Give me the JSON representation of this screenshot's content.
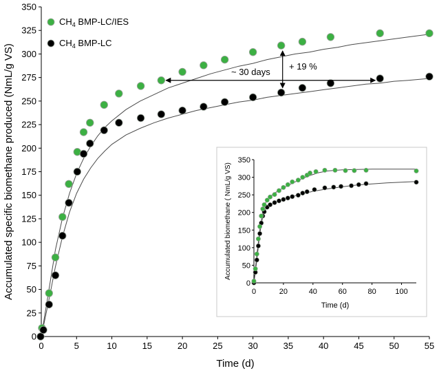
{
  "chart_data": [
    {
      "type": "scatter",
      "xlabel": "Time (d)",
      "ylabel": "Accumulated specific biomethane produced (NmL/g VS)",
      "xlim": [
        0,
        55
      ],
      "ylim": [
        0,
        350
      ],
      "xticks": [
        0,
        5,
        10,
        15,
        20,
        25,
        30,
        35,
        40,
        45,
        50,
        55
      ],
      "yticks": [
        0,
        25,
        50,
        75,
        100,
        125,
        150,
        175,
        200,
        225,
        250,
        275,
        300,
        325,
        350
      ],
      "legend": {
        "position": "top-left",
        "entries": [
          {
            "series": "bmp_lc_ies",
            "prefix": "CH",
            "sub": "4",
            "suffix": " BMP-LC/IES"
          },
          {
            "series": "bmp_lc",
            "prefix": "CH",
            "sub": "4",
            "suffix": " BMP-LC"
          }
        ]
      },
      "series": [
        {
          "id": "bmp_lc_ies",
          "name": "CH4 BMP-LC/IES",
          "color": "#3cb043",
          "points": [
            [
              0.1,
              9
            ],
            [
              1.1,
              46
            ],
            [
              2,
              84
            ],
            [
              3,
              127
            ],
            [
              3.9,
              162
            ],
            [
              5.1,
              196
            ],
            [
              6,
              217
            ],
            [
              6.9,
              227
            ],
            [
              8.9,
              246
            ],
            [
              11,
              258
            ],
            [
              14.1,
              266
            ],
            [
              17,
              272
            ],
            [
              20,
              281
            ],
            [
              23,
              288
            ],
            [
              26,
              294
            ],
            [
              30,
              302
            ],
            [
              34,
              309
            ],
            [
              37,
              313
            ],
            [
              41,
              318
            ],
            [
              48,
              322
            ],
            [
              55,
              322
            ]
          ],
          "fit": [
            [
              0,
              0
            ],
            [
              1,
              46
            ],
            [
              2,
              92
            ],
            [
              3,
              126
            ],
            [
              4,
              152
            ],
            [
              5,
              173
            ],
            [
              6,
              189
            ],
            [
              7,
              202
            ],
            [
              8,
              213
            ],
            [
              9,
              222
            ],
            [
              10,
              229
            ],
            [
              12,
              241
            ],
            [
              14,
              250
            ],
            [
              16,
              257
            ],
            [
              18,
              264
            ],
            [
              20,
              269
            ],
            [
              22,
              274
            ],
            [
              24,
              279
            ],
            [
              26,
              283
            ],
            [
              28,
              287
            ],
            [
              30,
              290
            ],
            [
              32,
              294
            ],
            [
              34,
              297
            ],
            [
              36,
              300
            ],
            [
              38,
              302
            ],
            [
              40,
              305
            ],
            [
              42,
              307
            ],
            [
              44,
              310
            ],
            [
              46,
              312
            ],
            [
              48,
              314
            ],
            [
              50,
              316
            ],
            [
              52,
              318
            ],
            [
              55,
              321
            ]
          ]
        },
        {
          "id": "bmp_lc",
          "name": "CH4 BMP-LC",
          "color": "#000000",
          "points": [
            [
              -0.1,
              0
            ],
            [
              0.3,
              7
            ],
            [
              1.1,
              34
            ],
            [
              2,
              65
            ],
            [
              3,
              107
            ],
            [
              3.9,
              142
            ],
            [
              5.1,
              175
            ],
            [
              6,
              194
            ],
            [
              6.9,
              205
            ],
            [
              8.9,
              219
            ],
            [
              11,
              227
            ],
            [
              14.1,
              232
            ],
            [
              17,
              236
            ],
            [
              20,
              240
            ],
            [
              23,
              244
            ],
            [
              26,
              249
            ],
            [
              30,
              254
            ],
            [
              34,
              259
            ],
            [
              37,
              264
            ],
            [
              41,
              269
            ],
            [
              48,
              274
            ],
            [
              55,
              276
            ]
          ],
          "fit": [
            [
              0,
              0
            ],
            [
              1,
              36
            ],
            [
              2,
              74
            ],
            [
              3,
              106
            ],
            [
              4,
              132
            ],
            [
              5,
              152
            ],
            [
              6,
              167
            ],
            [
              7,
              179
            ],
            [
              8,
              189
            ],
            [
              9,
              197
            ],
            [
              10,
              204
            ],
            [
              12,
              214
            ],
            [
              14,
              221
            ],
            [
              16,
              227
            ],
            [
              18,
              232
            ],
            [
              20,
              236
            ],
            [
              22,
              240
            ],
            [
              24,
              243
            ],
            [
              26,
              246
            ],
            [
              28,
              249
            ],
            [
              30,
              251
            ],
            [
              32,
              254
            ],
            [
              34,
              256
            ],
            [
              36,
              258
            ],
            [
              38,
              260
            ],
            [
              40,
              262
            ],
            [
              42,
              264
            ],
            [
              44,
              266
            ],
            [
              46,
              268
            ],
            [
              48,
              269
            ],
            [
              50,
              271
            ],
            [
              52,
              272
            ],
            [
              55,
              274
            ]
          ]
        }
      ],
      "annotations": [
        {
          "id": "days_arrow",
          "text": "~ 30 days",
          "from": [
            17,
            272
          ],
          "to": [
            48,
            274
          ]
        },
        {
          "id": "percent_arrow",
          "text": "+ 19 %",
          "from": [
            34.2,
            309
          ],
          "to": [
            34.2,
            259
          ]
        }
      ]
    },
    {
      "type": "scatter",
      "inset": true,
      "xlabel": "Time (d)",
      "ylabel": "Accumulated biomethane ( NmL/g VS)",
      "xlim": [
        0,
        110
      ],
      "ylim": [
        0,
        350
      ],
      "xticks": [
        0,
        20,
        40,
        60,
        80,
        100
      ],
      "yticks": [
        0,
        50,
        100,
        150,
        200,
        250,
        300,
        350
      ],
      "series": [
        {
          "id": "bmp_lc_ies",
          "name": "CH4 BMP-LC/IES",
          "color": "#3cb043",
          "points": [
            [
              0,
              5
            ],
            [
              1,
              40
            ],
            [
              2,
              82
            ],
            [
              3,
              125
            ],
            [
              4,
              160
            ],
            [
              5,
              190
            ],
            [
              6,
              210
            ],
            [
              7,
              222
            ],
            [
              9,
              235
            ],
            [
              11,
              244
            ],
            [
              14,
              251
            ],
            [
              17,
              262
            ],
            [
              20,
              271
            ],
            [
              23,
              279
            ],
            [
              26,
              287
            ],
            [
              30,
              292
            ],
            [
              33,
              300
            ],
            [
              36,
              306
            ],
            [
              38,
              312
            ],
            [
              42,
              316
            ],
            [
              48,
              320
            ],
            [
              55,
              320
            ],
            [
              62,
              319
            ],
            [
              68,
              319
            ],
            [
              76,
              320
            ],
            [
              110,
              318
            ]
          ],
          "fit": [
            [
              0,
              0
            ],
            [
              2,
              80
            ],
            [
              4,
              150
            ],
            [
              6,
              200
            ],
            [
              8,
              228
            ],
            [
              10,
              242
            ],
            [
              14,
              255
            ],
            [
              20,
              270
            ],
            [
              26,
              283
            ],
            [
              32,
              295
            ],
            [
              38,
              305
            ],
            [
              44,
              313
            ],
            [
              50,
              318
            ],
            [
              60,
              321
            ],
            [
              70,
              322
            ],
            [
              80,
              323
            ],
            [
              90,
              323
            ],
            [
              100,
              323
            ],
            [
              110,
              323
            ]
          ]
        },
        {
          "id": "bmp_lc",
          "name": "CH4 BMP-LC",
          "color": "#000000",
          "points": [
            [
              0,
              0
            ],
            [
              1,
              30
            ],
            [
              2,
              65
            ],
            [
              3,
              105
            ],
            [
              4,
              140
            ],
            [
              5,
              170
            ],
            [
              6,
              190
            ],
            [
              7,
              202
            ],
            [
              9,
              215
            ],
            [
              11,
              222
            ],
            [
              14,
              228
            ],
            [
              17,
              233
            ],
            [
              20,
              237
            ],
            [
              23,
              241
            ],
            [
              26,
              245
            ],
            [
              30,
              249
            ],
            [
              33,
              255
            ],
            [
              36,
              259
            ],
            [
              41,
              265
            ],
            [
              48,
              270
            ],
            [
              54,
              272
            ],
            [
              59,
              274
            ],
            [
              66,
              276
            ],
            [
              71,
              279
            ],
            [
              76,
              282
            ],
            [
              110,
              286
            ]
          ],
          "fit": [
            [
              0,
              0
            ],
            [
              2,
              65
            ],
            [
              4,
              140
            ],
            [
              6,
              190
            ],
            [
              8,
              210
            ],
            [
              10,
              219
            ],
            [
              14,
              228
            ],
            [
              20,
              237
            ],
            [
              26,
              245
            ],
            [
              32,
              252
            ],
            [
              40,
              260
            ],
            [
              50,
              267
            ],
            [
              60,
              273
            ],
            [
              70,
              278
            ],
            [
              80,
              281
            ],
            [
              90,
              284
            ],
            [
              100,
              286
            ],
            [
              110,
              288
            ]
          ]
        }
      ]
    }
  ]
}
